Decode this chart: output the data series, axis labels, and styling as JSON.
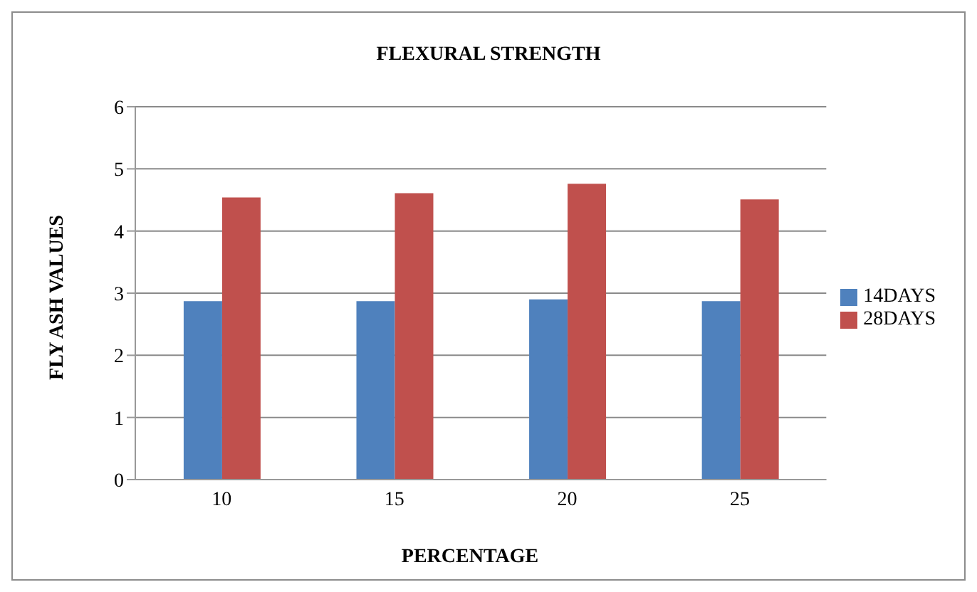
{
  "chart_data": {
    "type": "bar",
    "title": "FLEXURAL STRENGTH",
    "xlabel": "PERCENTAGE",
    "ylabel": "FLY ASH VALUES",
    "categories": [
      "10",
      "15",
      "20",
      "25"
    ],
    "series": [
      {
        "name": "14DAYS",
        "color": "#4f81bd",
        "values": [
          2.87,
          2.87,
          2.9,
          2.87
        ]
      },
      {
        "name": "28DAYS",
        "color": "#c0504d",
        "values": [
          4.54,
          4.61,
          4.76,
          4.51
        ]
      }
    ],
    "ylim": [
      0,
      6
    ],
    "yticks": [
      0,
      1,
      2,
      3,
      4,
      5,
      6
    ],
    "grid": "y",
    "legend": "right"
  }
}
